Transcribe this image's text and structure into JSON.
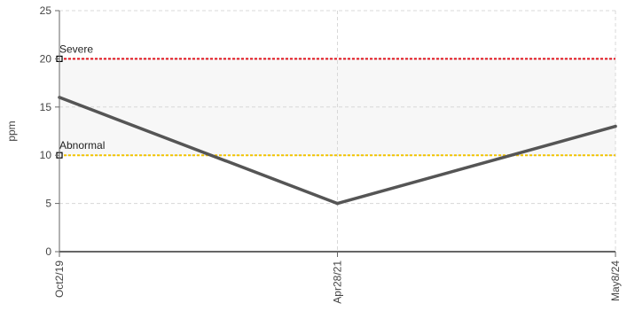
{
  "chart_data": {
    "type": "line",
    "x": [
      "Oct2/19",
      "Apr28/21",
      "May8/24"
    ],
    "y_ticks": [
      0,
      5,
      10,
      15,
      20,
      25
    ],
    "ylim": [
      0,
      25
    ],
    "xlabel": "",
    "ylabel": "ppm",
    "title": "",
    "grid": true,
    "series": [
      {
        "values": [
          16,
          5,
          13
        ],
        "color": "#555555"
      }
    ],
    "thresholds": [
      {
        "label": "Severe",
        "value": 20,
        "color": "#e0141e"
      },
      {
        "label": "Abnormal",
        "value": 10,
        "color": "#f2c400"
      }
    ],
    "band": {
      "from": 10,
      "to": 20,
      "color": "#f7f7f7"
    }
  }
}
